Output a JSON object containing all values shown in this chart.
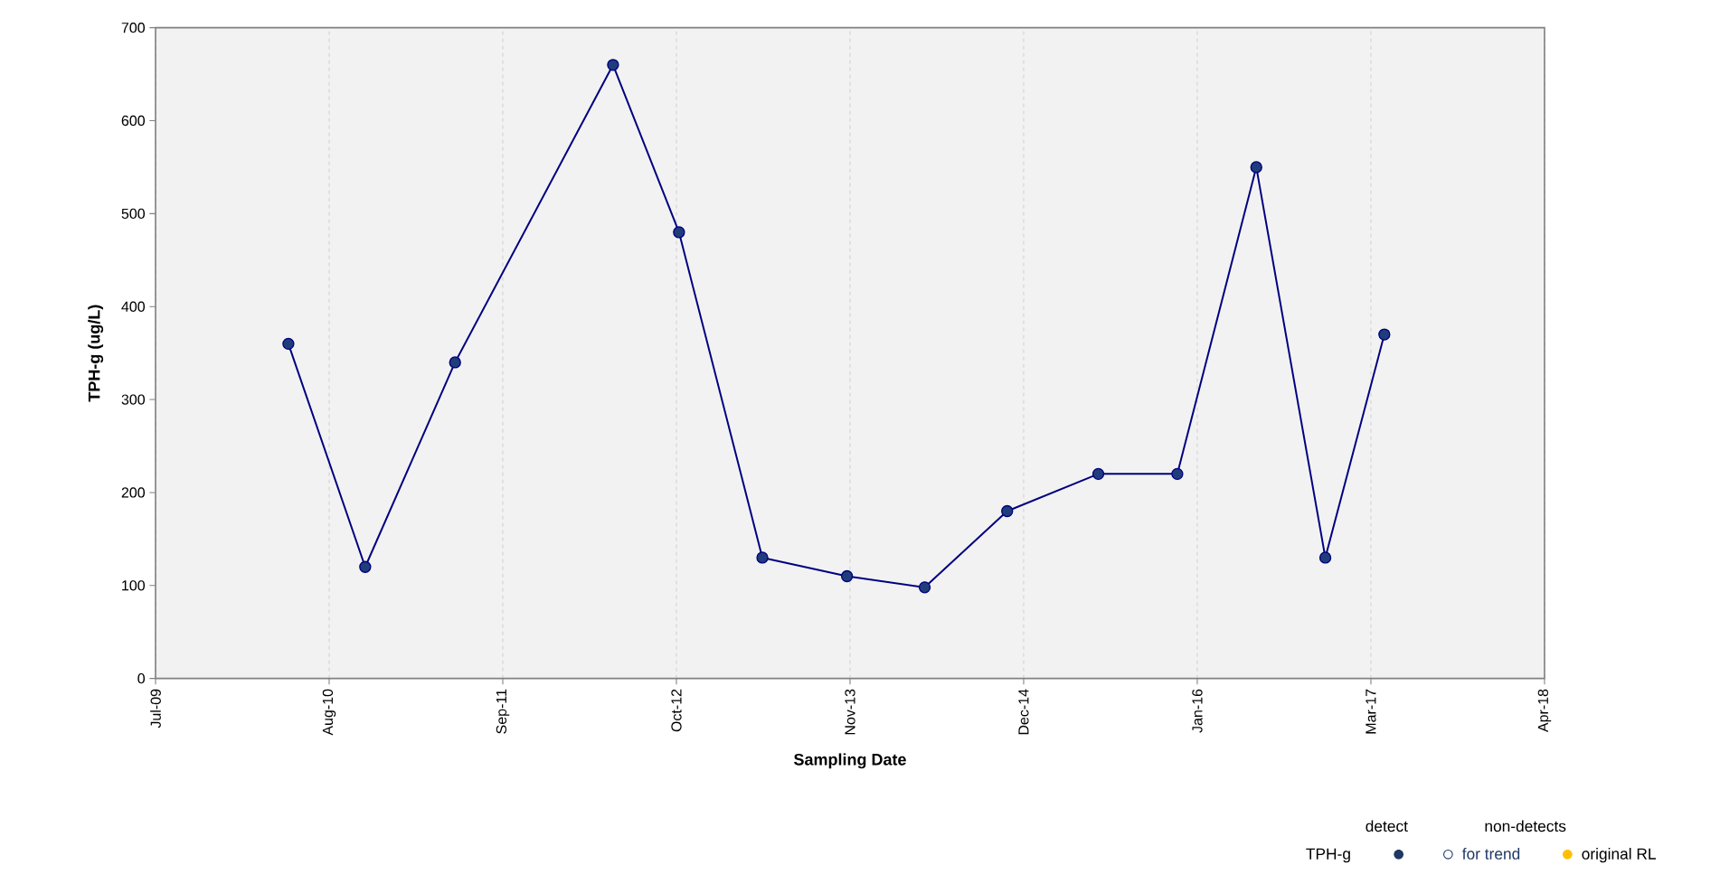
{
  "chart_data": {
    "type": "line",
    "xlabel": "Sampling Date",
    "ylabel": "TPH-g (ug/L)",
    "x": [
      "2010-05-03",
      "2010-10-27",
      "2011-05-22",
      "2012-05-20",
      "2012-10-19",
      "2013-04-29",
      "2013-11-10",
      "2014-05-08",
      "2014-11-14",
      "2015-06-12",
      "2015-12-11",
      "2016-06-10",
      "2016-11-16",
      "2017-04-01"
    ],
    "series": [
      {
        "name": "TPH-g",
        "color": "#000080",
        "marker": "circle",
        "values": [
          360,
          120,
          340,
          660,
          480,
          130,
          110,
          98,
          180,
          220,
          220,
          550,
          130,
          370
        ]
      },
      {
        "name": "for trend",
        "color": "#1f3864",
        "marker": "circle-open",
        "values": [
          null,
          null,
          null,
          null,
          null,
          null,
          null,
          null,
          null,
          null,
          null,
          null,
          null,
          null
        ]
      },
      {
        "name": "original RL",
        "color": "#ffc000",
        "marker": "circle",
        "values": [
          null,
          null,
          null,
          null,
          null,
          null,
          null,
          null,
          null,
          null,
          null,
          null,
          null,
          null
        ]
      }
    ],
    "annotations": [
      "detect",
      "non-detects"
    ],
    "xlim": [
      "2009-07-01",
      "2018-04-05"
    ],
    "xticks": [
      {
        "value": "2009-07-01",
        "label": "Jul-09"
      },
      {
        "value": "2010-08-05",
        "label": "Aug-10"
      },
      {
        "value": "2011-09-09",
        "label": "Sep-11"
      },
      {
        "value": "2012-10-13",
        "label": "Oct-12"
      },
      {
        "value": "2013-11-17",
        "label": "Nov-13"
      },
      {
        "value": "2014-12-22",
        "label": "Dec-14"
      },
      {
        "value": "2016-01-26",
        "label": "Jan-16"
      },
      {
        "value": "2017-03-01",
        "label": "Mar-17"
      },
      {
        "value": "2018-04-05",
        "label": "Apr-18"
      }
    ],
    "ylim": [
      0,
      700
    ],
    "yticks": [
      0,
      100,
      200,
      300,
      400,
      500,
      600,
      700
    ],
    "grid": "x",
    "legend": "bottom right",
    "line_style": "solid"
  }
}
